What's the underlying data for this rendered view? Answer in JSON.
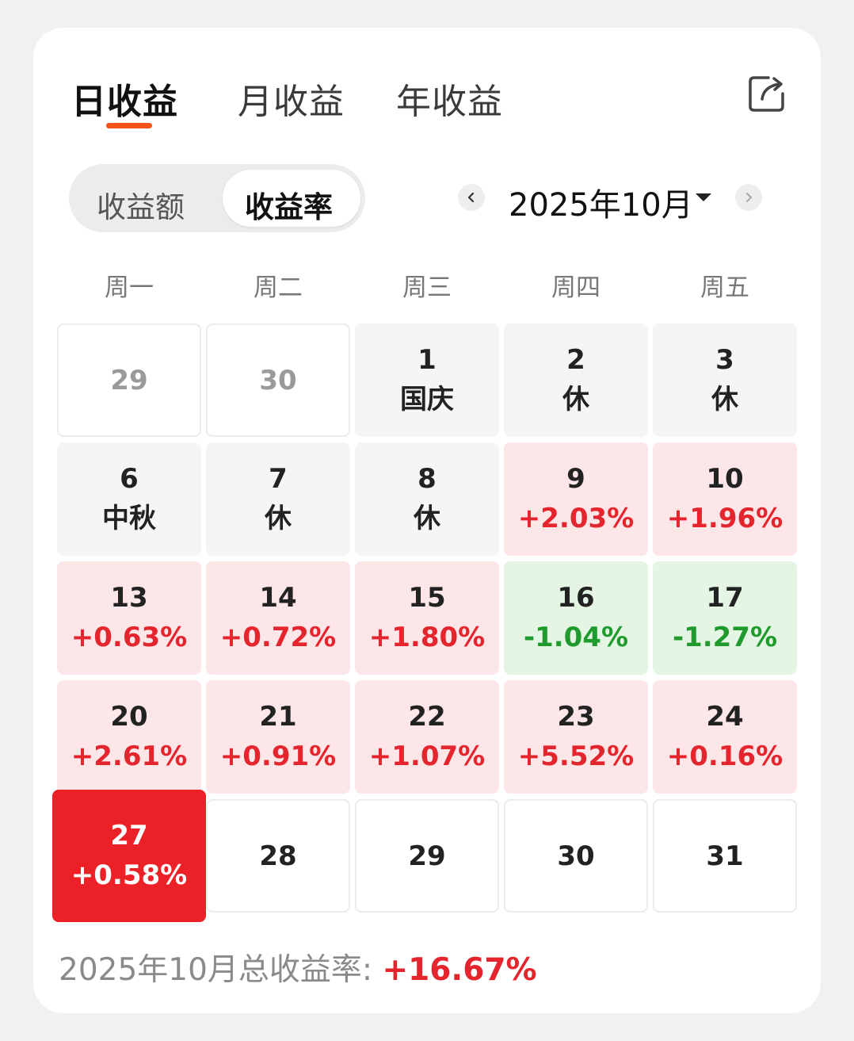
{
  "tabs": {
    "daily": "日收益",
    "monthly": "月收益",
    "yearly": "年收益"
  },
  "toggle": {
    "amount": "收益额",
    "rate": "收益率"
  },
  "month_picker": {
    "label": "2025年10月"
  },
  "weekdays": [
    "周一",
    "周二",
    "周三",
    "周四",
    "周五"
  ],
  "calendar": [
    {
      "day": "29",
      "sub": "",
      "kind": "out"
    },
    {
      "day": "30",
      "sub": "",
      "kind": "out"
    },
    {
      "day": "1",
      "sub": "国庆",
      "kind": "hol"
    },
    {
      "day": "2",
      "sub": "休",
      "kind": "hol"
    },
    {
      "day": "3",
      "sub": "休",
      "kind": "hol"
    },
    {
      "day": "6",
      "sub": "中秋",
      "kind": "hol"
    },
    {
      "day": "7",
      "sub": "休",
      "kind": "hol"
    },
    {
      "day": "8",
      "sub": "休",
      "kind": "hol"
    },
    {
      "day": "9",
      "sub": "+2.03%",
      "kind": "up"
    },
    {
      "day": "10",
      "sub": "+1.96%",
      "kind": "up"
    },
    {
      "day": "13",
      "sub": "+0.63%",
      "kind": "up"
    },
    {
      "day": "14",
      "sub": "+0.72%",
      "kind": "up"
    },
    {
      "day": "15",
      "sub": "+1.80%",
      "kind": "up"
    },
    {
      "day": "16",
      "sub": "-1.04%",
      "kind": "down"
    },
    {
      "day": "17",
      "sub": "-1.27%",
      "kind": "down"
    },
    {
      "day": "20",
      "sub": "+2.61%",
      "kind": "up"
    },
    {
      "day": "21",
      "sub": "+0.91%",
      "kind": "up"
    },
    {
      "day": "22",
      "sub": "+1.07%",
      "kind": "up"
    },
    {
      "day": "23",
      "sub": "+5.52%",
      "kind": "up"
    },
    {
      "day": "24",
      "sub": "+0.16%",
      "kind": "up"
    },
    {
      "day": "27",
      "sub": "+0.58%",
      "kind": "sel"
    },
    {
      "day": "28",
      "sub": "",
      "kind": "future"
    },
    {
      "day": "29",
      "sub": "",
      "kind": "future"
    },
    {
      "day": "30",
      "sub": "",
      "kind": "future"
    },
    {
      "day": "31",
      "sub": "",
      "kind": "future"
    }
  ],
  "summary": {
    "label": "2025年10月总收益率:",
    "value": "+16.67%"
  },
  "colors": {
    "accent": "#f5531b",
    "up": "#e4252e",
    "down": "#1f9a2c",
    "selected": "#ec2027"
  }
}
